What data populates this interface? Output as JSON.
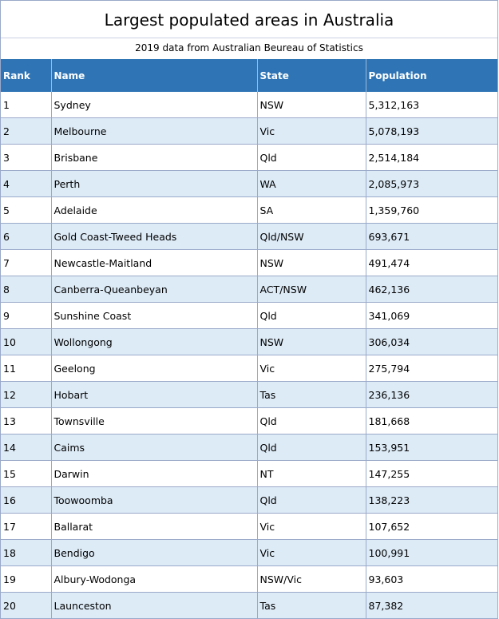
{
  "title": "Largest populated areas in Australia",
  "subtitle": "2019 data from Australian Beureau of Statistics",
  "colors": {
    "header_bg": "#2f75b5",
    "stripe_bg": "#ddebf7",
    "grid": "#9aa9c9"
  },
  "columns": [
    "Rank",
    "Name",
    "State",
    "Population"
  ],
  "rows": [
    [
      "1",
      "Sydney",
      "NSW",
      "5,312,163"
    ],
    [
      "2",
      "Melbourne",
      "Vic",
      "5,078,193"
    ],
    [
      "3",
      "Brisbane",
      "Qld",
      "2,514,184"
    ],
    [
      "4",
      "Perth",
      "WA",
      "2,085,973"
    ],
    [
      "5",
      "Adelaide",
      "SA",
      "1,359,760"
    ],
    [
      "6",
      "Gold Coast-Tweed Heads",
      "Qld/NSW",
      "693,671"
    ],
    [
      "7",
      "Newcastle-Maitland",
      "NSW",
      "491,474"
    ],
    [
      "8",
      "Canberra-Queanbeyan",
      "ACT/NSW",
      "462,136"
    ],
    [
      "9",
      "Sunshine Coast",
      "Qld",
      "341,069"
    ],
    [
      "10",
      "Wollongong",
      "NSW",
      "306,034"
    ],
    [
      "11",
      "Geelong",
      "Vic",
      "275,794"
    ],
    [
      "12",
      "Hobart",
      "Tas",
      "236,136"
    ],
    [
      "13",
      "Townsville",
      "Qld",
      "181,668"
    ],
    [
      "14",
      "Caims",
      "Qld",
      "153,951"
    ],
    [
      "15",
      "Darwin",
      "NT",
      "147,255"
    ],
    [
      "16",
      "Toowoomba",
      "Qld",
      "138,223"
    ],
    [
      "17",
      "Ballarat",
      "Vic",
      "107,652"
    ],
    [
      "18",
      "Bendigo",
      "Vic",
      "100,991"
    ],
    [
      "19",
      "Albury-Wodonga",
      "NSW/Vic",
      "93,603"
    ],
    [
      "20",
      "Launceston",
      "Tas",
      "87,382"
    ]
  ]
}
